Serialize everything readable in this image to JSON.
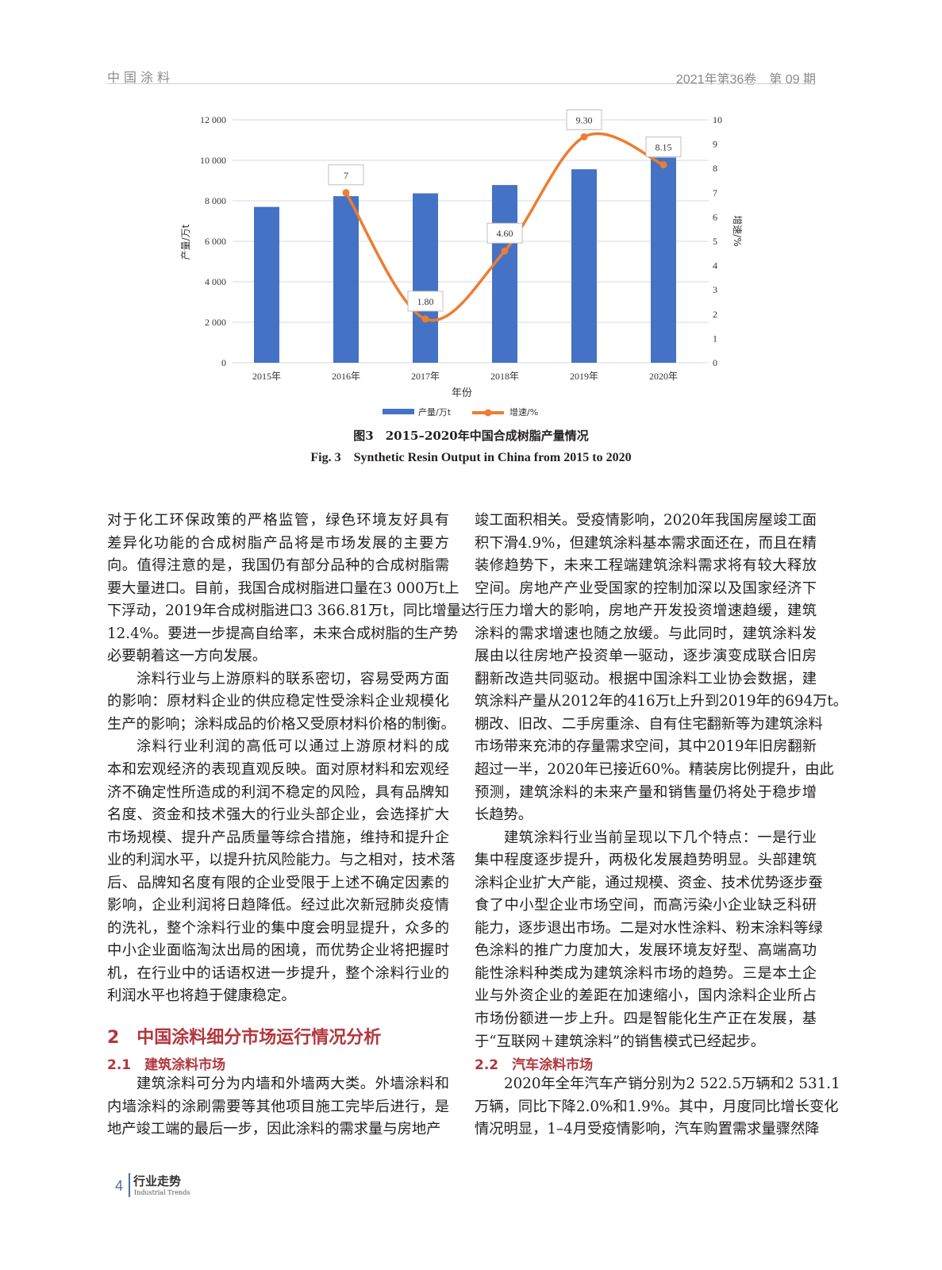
{
  "header": {
    "journal": "中国涂料",
    "issue": "2021年第36卷　第 09 期"
  },
  "chart_data": {
    "type": "bar+line",
    "categories": [
      "2015年",
      "2016年",
      "2017年",
      "2018年",
      "2019年",
      "2020年"
    ],
    "series": [
      {
        "name": "产量/万t",
        "type": "bar",
        "axis": "left",
        "color": "#4472c4",
        "values": [
          7700,
          8230,
          8370,
          8780,
          9560,
          10140
        ]
      },
      {
        "name": "增速/%",
        "type": "line",
        "axis": "right",
        "color": "#ed7d31",
        "values": [
          null,
          7,
          1.8,
          4.6,
          9.3,
          8.15
        ],
        "labels": [
          null,
          "7",
          "1.80",
          "4.60",
          "9.30",
          "8.15"
        ]
      }
    ],
    "xlabel": "年份",
    "ylabel": "产量/万t",
    "y2label": "增速/%",
    "ylim": [
      0,
      12000
    ],
    "y2lim": [
      0,
      10
    ],
    "yticks": [
      "0",
      "2 000",
      "4 000",
      "6 000",
      "8 000",
      "10 000",
      "12 000"
    ],
    "y2ticks": [
      "0",
      "1",
      "2",
      "3",
      "4",
      "5",
      "6",
      "7",
      "8",
      "9",
      "10"
    ],
    "grid": true,
    "legend": "bottom",
    "caption_cn": "图3　2015–2020年中国合成树脂产量情况",
    "caption_en": "Fig. 3　Synthetic Resin Output in China from 2015 to 2020"
  },
  "left_column": {
    "paragraphs": [
      {
        "indent": false,
        "lines": [
          "对于化工环保政策的严格监管，绿色环境友好具有",
          "差异化功能的合成树脂产品将是市场发展的主要方",
          "向。值得注意的是，我国仍有部分品种的合成树脂需",
          "要大量进口。目前，我国合成树脂进口量在3 000万t上",
          "下浮动，2019年合成树脂进口3 366.81万t，同比增量达",
          "12.4%。要进一步提高自给率，未来合成树脂的生产势",
          "必要朝着这一方向发展。"
        ]
      },
      {
        "indent": true,
        "lines": [
          "涂料行业与上游原料的联系密切，容易受两方面",
          "的影响：原材料企业的供应稳定性受涂料企业规模化",
          "生产的影响；涂料成品的价格又受原材料价格的制衡。"
        ]
      },
      {
        "indent": true,
        "lines": [
          "涂料行业利润的高低可以通过上游原材料的成",
          "本和宏观经济的表现直观反映。面对原材料和宏观经",
          "济不确定性所造成的利润不稳定的风险，具有品牌知",
          "名度、资金和技术强大的行业头部企业，会选择扩大",
          "市场规模、提升产品质量等综合措施，维持和提升企",
          "业的利润水平，以提升抗风险能力。与之相对，技术落",
          "后、品牌知名度有限的企业受限于上述不确定因素的",
          "影响，企业利润将日趋降低。经过此次新冠肺炎疫情",
          "的洗礼，整个涂料行业的集中度会明显提升，众多的",
          "中小企业面临淘汰出局的困境，而优势企业将把握时",
          "机，在行业中的话语权进一步提升，整个涂料行业的",
          "利润水平也将趋于健康稳定。"
        ]
      }
    ],
    "section_heading": "2　中国涂料细分市场运行情况分析",
    "subsection_heading": "2.1　建筑涂料市场",
    "after": {
      "indent": true,
      "lines": [
        "建筑涂料可分为内墙和外墙两大类。外墙涂料和",
        "内墙涂料的涂刷需要等其他项目施工完毕后进行，是",
        "地产竣工端的最后一步，因此涂料的需求量与房地产"
      ]
    }
  },
  "right_column": {
    "paragraphs": [
      {
        "indent": false,
        "lines": [
          "竣工面积相关。受疫情影响，2020年我国房屋竣工面",
          "积下滑4.9%，但建筑涂料基本需求面还在，而且在精",
          "装修趋势下，未来工程端建筑涂料需求将有较大释放",
          "空间。房地产产业受国家的控制加深以及国家经济下",
          "行压力增大的影响，房地产开发投资增速趋缓，建筑",
          "涂料的需求增速也随之放缓。与此同时，建筑涂料发",
          "展由以往房地产投资单一驱动，逐步演变成联合旧房",
          "翻新改造共同驱动。根据中国涂料工业协会数据，建",
          "筑涂料产量从2012年的416万t上升到2019年的694万t。",
          "棚改、旧改、二手房重涂、自有住宅翻新等为建筑涂料",
          "市场带来充沛的存量需求空间，其中2019年旧房翻新",
          "超过一半，2020年已接近60%。精装房比例提升，由此",
          "预测，建筑涂料的未来产量和销售量仍将处于稳步增",
          "长趋势。"
        ]
      },
      {
        "indent": true,
        "lines": [
          "建筑涂料行业当前呈现以下几个特点：一是行业",
          "集中程度逐步提升，两极化发展趋势明显。头部建筑",
          "涂料企业扩大产能，通过规模、资金、技术优势逐步蚕",
          "食了中小型企业市场空间，而高污染小企业缺乏科研",
          "能力，逐步退出市场。二是对水性涂料、粉末涂料等绿",
          "色涂料的推广力度加大，发展环境友好型、高端高功",
          "能性涂料种类成为建筑涂料市场的趋势。三是本土企",
          "业与外资企业的差距在加速缩小，国内涂料企业所占",
          "市场份额进一步上升。四是智能化生产正在发展，基",
          "于“互联网＋建筑涂料”的销售模式已经起步。"
        ]
      }
    ],
    "subsection_heading": "2.2　汽车涂料市场",
    "after": {
      "indent": true,
      "lines": [
        "2020年全年汽车产销分别为2 522.5万辆和2 531.1",
        "万辆，同比下降2.0%和1.9%。其中，月度同比增长变化",
        "情况明显，1–4月受疫情影响，汽车购置需求量骤然降"
      ]
    }
  },
  "footer": {
    "page": "4",
    "section_cn": "行业走势",
    "section_en": "Industrial Trends"
  }
}
